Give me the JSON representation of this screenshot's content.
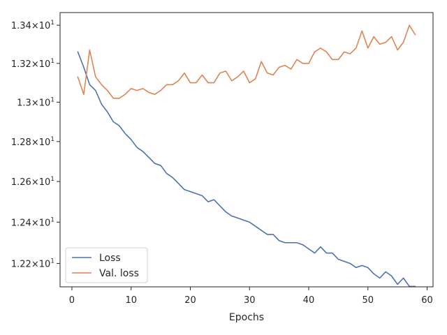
{
  "chart_data": {
    "type": "line",
    "title": "",
    "xlabel": "Epochs",
    "ylabel": "",
    "xlim": [
      -2,
      61
    ],
    "ylim": [
      12.088,
      13.467
    ],
    "yscale": "log",
    "grid": false,
    "legend_position": "lower-left",
    "x_ticks": [
      0,
      10,
      20,
      30,
      40,
      50,
      60
    ],
    "x_tick_labels": [
      "0",
      "10",
      "20",
      "30",
      "40",
      "50",
      "60"
    ],
    "y_ticks": [
      12.2,
      12.4,
      12.6,
      12.8,
      13.0,
      13.2,
      13.4
    ],
    "y_tick_mantissas": [
      "1.22",
      "1.24",
      "1.26",
      "1.28",
      "1.3",
      "1.32",
      "1.34"
    ],
    "y_tick_times": "×",
    "y_tick_base": "10",
    "y_tick_exponent": "1",
    "x": [
      1,
      2,
      3,
      4,
      5,
      6,
      7,
      8,
      9,
      10,
      11,
      12,
      13,
      14,
      15,
      16,
      17,
      18,
      19,
      20,
      21,
      22,
      23,
      24,
      25,
      26,
      27,
      28,
      29,
      30,
      31,
      32,
      33,
      34,
      35,
      36,
      37,
      38,
      39,
      40,
      41,
      42,
      43,
      44,
      45,
      46,
      47,
      48,
      49,
      50,
      51,
      52,
      53,
      54,
      55,
      56,
      57,
      58
    ],
    "series": [
      {
        "name": "Loss",
        "color": "#4c72b0",
        "values": [
          13.26,
          13.18,
          13.09,
          13.06,
          12.99,
          12.95,
          12.9,
          12.88,
          12.84,
          12.81,
          12.77,
          12.75,
          12.72,
          12.69,
          12.68,
          12.64,
          12.62,
          12.59,
          12.56,
          12.55,
          12.54,
          12.53,
          12.5,
          12.51,
          12.48,
          12.45,
          12.43,
          12.42,
          12.41,
          12.4,
          12.38,
          12.36,
          12.34,
          12.34,
          12.31,
          12.3,
          12.3,
          12.3,
          12.29,
          12.27,
          12.25,
          12.28,
          12.25,
          12.25,
          12.22,
          12.21,
          12.2,
          12.18,
          12.19,
          12.18,
          12.15,
          12.13,
          12.16,
          12.14,
          12.1,
          12.13,
          12.09,
          12.09
        ]
      },
      {
        "name": "Val. loss",
        "color": "#dd8452",
        "values": [
          13.13,
          13.04,
          13.27,
          13.13,
          13.09,
          13.06,
          13.02,
          13.02,
          13.04,
          13.07,
          13.06,
          13.07,
          13.05,
          13.04,
          13.06,
          13.09,
          13.09,
          13.11,
          13.15,
          13.1,
          13.1,
          13.14,
          13.1,
          13.1,
          13.15,
          13.16,
          13.11,
          13.13,
          13.16,
          13.1,
          13.12,
          13.21,
          13.15,
          13.14,
          13.18,
          13.19,
          13.17,
          13.22,
          13.2,
          13.2,
          13.26,
          13.28,
          13.26,
          13.22,
          13.22,
          13.26,
          13.25,
          13.28,
          13.37,
          13.28,
          13.34,
          13.3,
          13.31,
          13.34,
          13.27,
          13.31,
          13.4,
          13.35
        ]
      }
    ]
  }
}
